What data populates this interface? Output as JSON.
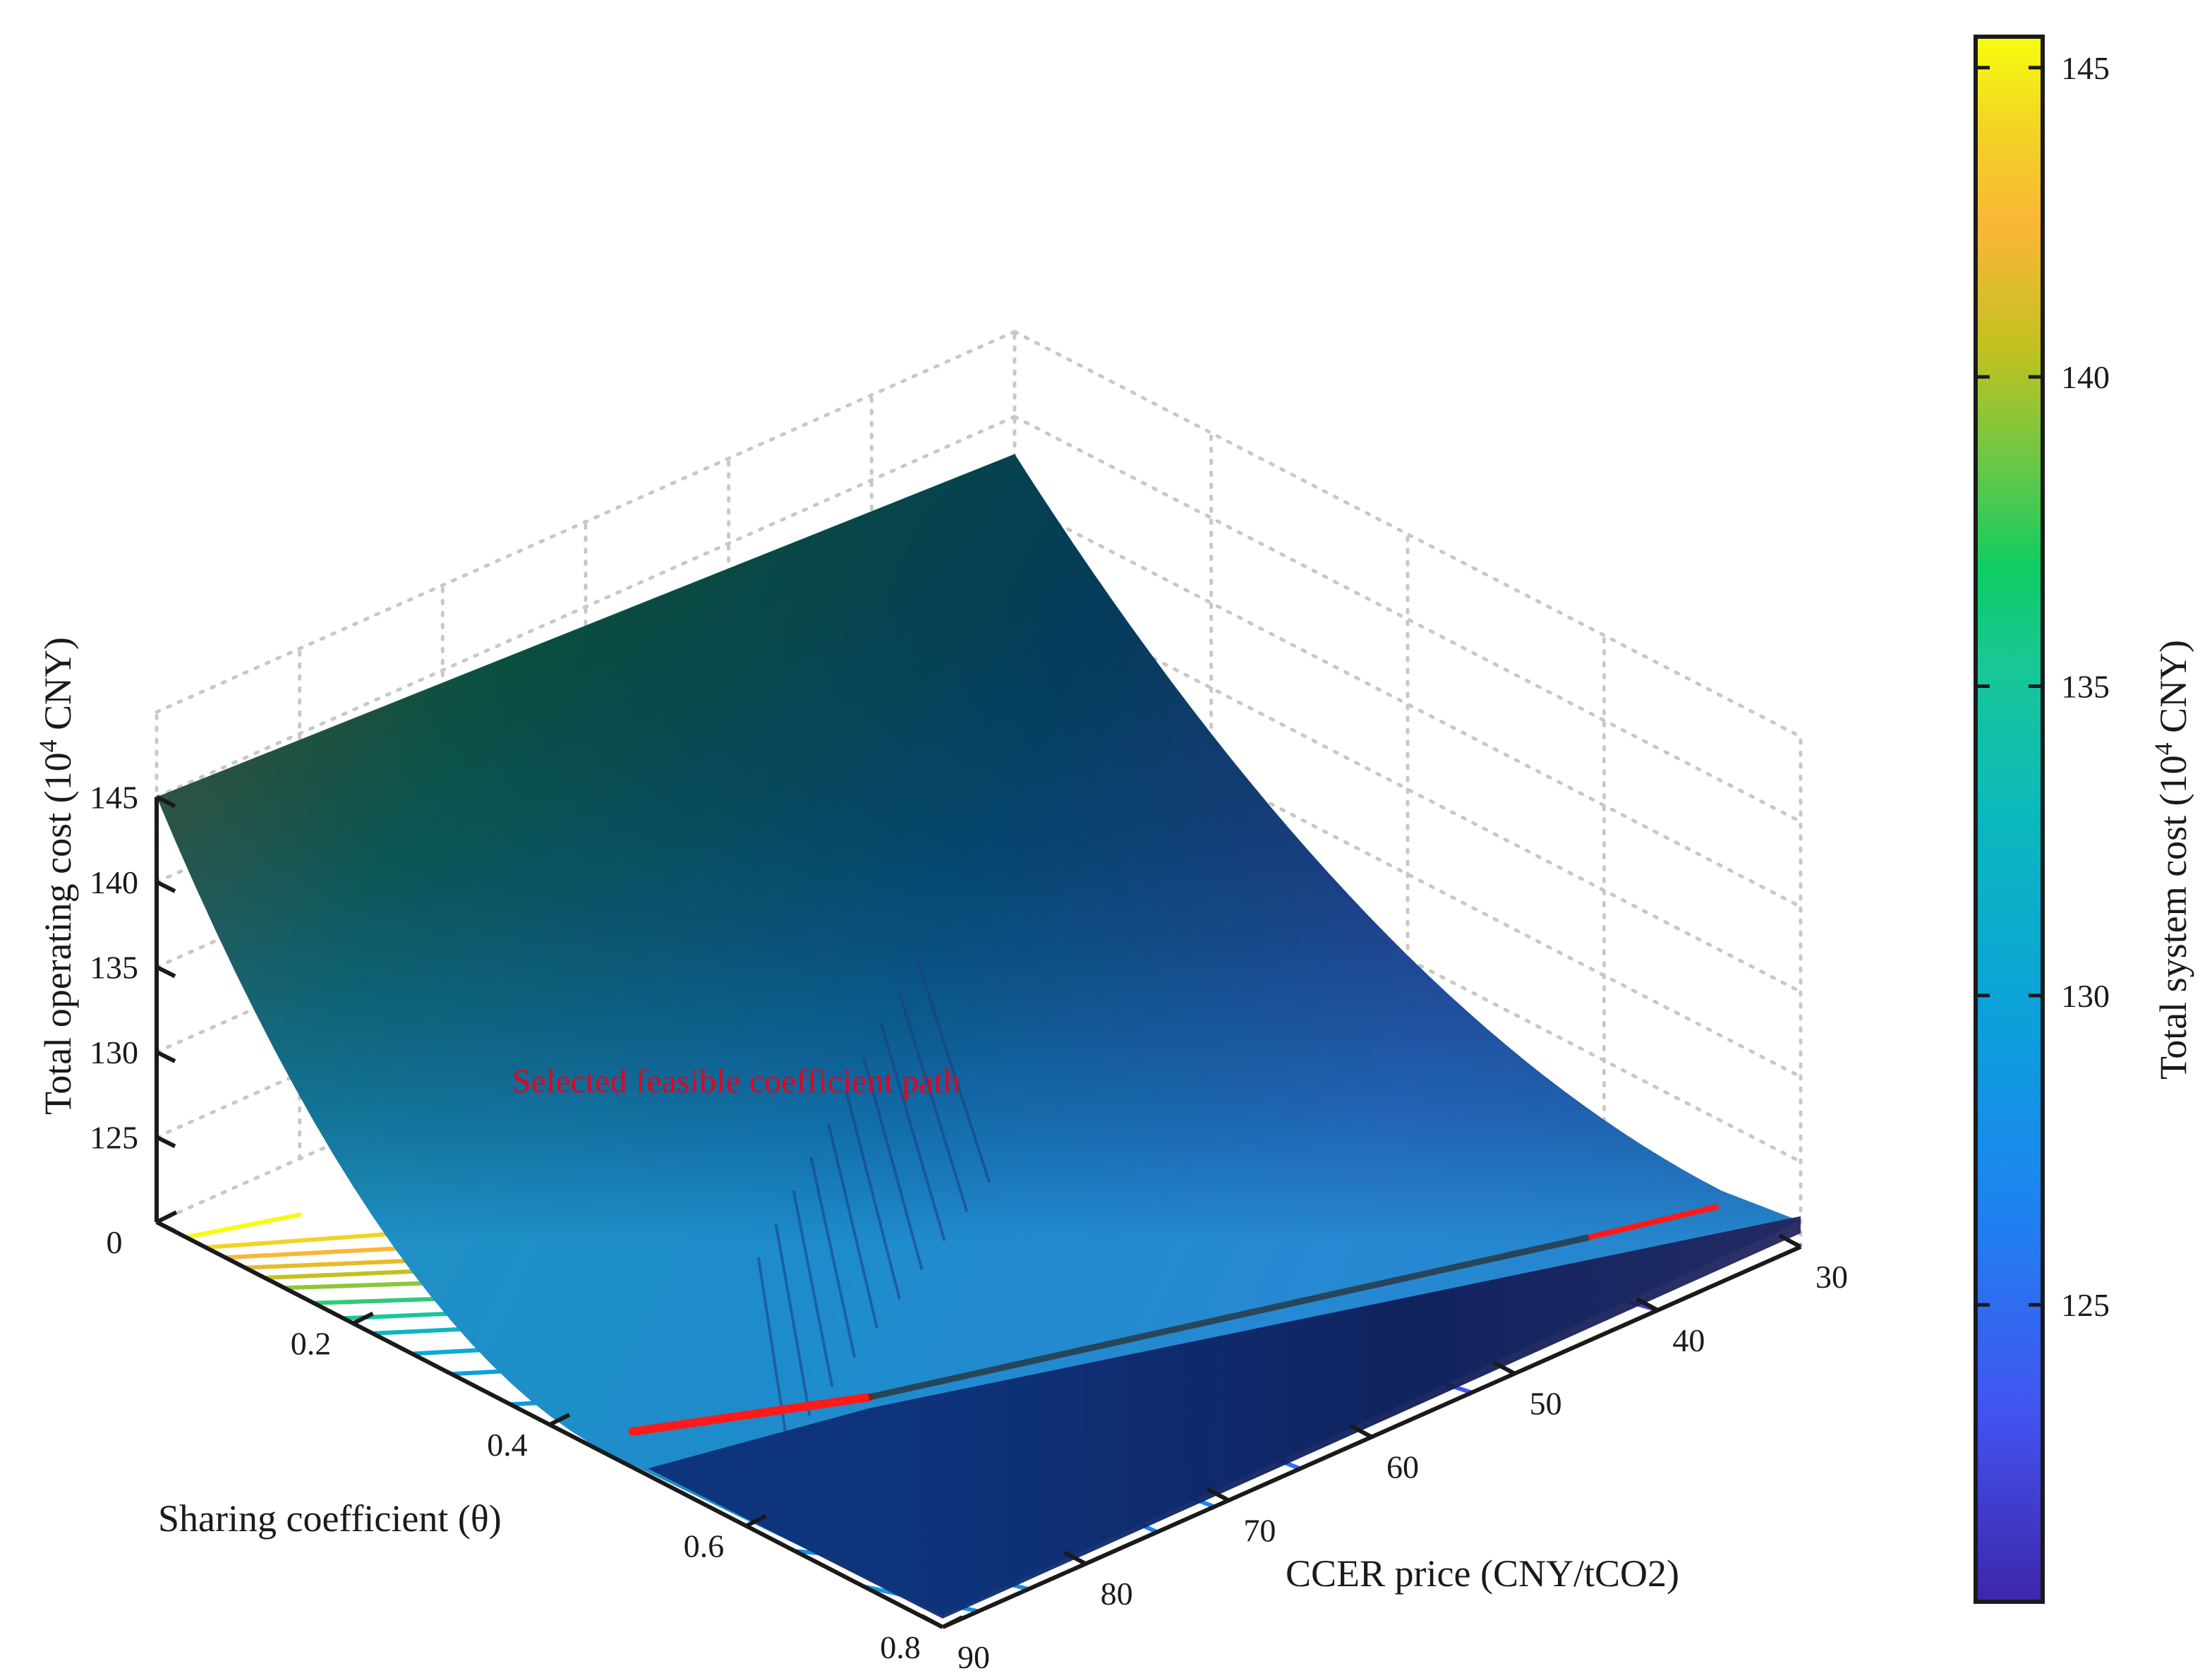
{
  "chart_data": {
    "type": "surface",
    "colormap": "parula",
    "x_axis": {
      "label": "Sharing coefficient (θ)",
      "ticks": [
        "0",
        "0.2",
        "0.4",
        "0.6",
        "0.8"
      ],
      "range": [
        0,
        0.8
      ]
    },
    "y_axis": {
      "label": "CCER price (CNY/tCO2)",
      "ticks": [
        "30",
        "40",
        "50",
        "60",
        "70",
        "80",
        "90"
      ],
      "range": [
        30,
        90
      ]
    },
    "z_axis": {
      "label_main": "Total operating cost (10",
      "label_sup": "4",
      "label_end": " CNY)",
      "ticks": [
        "125",
        "130",
        "135",
        "140",
        "145"
      ],
      "range": [
        120,
        145
      ]
    },
    "colorbar": {
      "label_main": "Total system cost (10",
      "label_sup": "4",
      "label_end": " CNY)",
      "ticks": [
        "125",
        "130",
        "135",
        "140",
        "145"
      ],
      "range": [
        120.2,
        145.5
      ]
    },
    "surface_corners": [
      {
        "theta": 0,
        "price": 90,
        "cost": 145
      },
      {
        "theta": 0,
        "price": 30,
        "cost": 142.8
      },
      {
        "theta": 0.8,
        "price": 90,
        "cost": 120.5
      },
      {
        "theta": 0.8,
        "price": 30,
        "cost": 121.2
      }
    ],
    "surface_minimum": {
      "theta": 0.46,
      "price": 90,
      "cost": 120.1
    },
    "annotation": {
      "text": "Selected feasible coefficient path",
      "color": "#e8001c"
    },
    "grid": true
  }
}
